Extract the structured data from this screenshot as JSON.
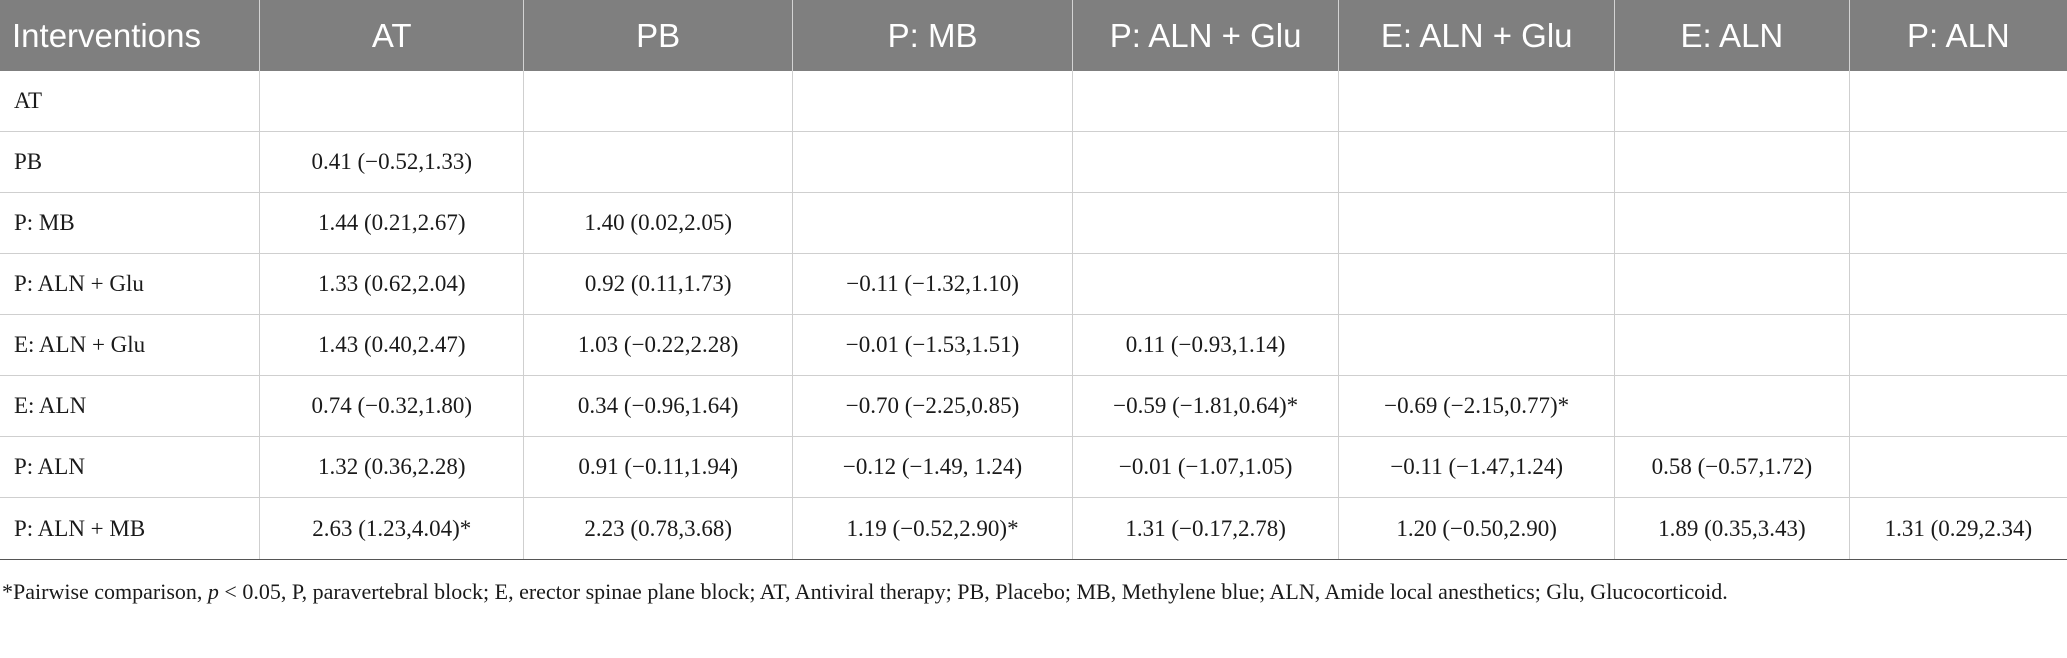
{
  "table": {
    "headers": [
      "Interventions",
      "AT",
      "PB",
      "P: MB",
      "P: ALN + Glu",
      "E: ALN + Glu",
      "E: ALN",
      "P: ALN"
    ],
    "rows": [
      [
        "AT",
        "",
        "",
        "",
        "",
        "",
        "",
        ""
      ],
      [
        "PB",
        "0.41 (−0.52,1.33)",
        "",
        "",
        "",
        "",
        "",
        ""
      ],
      [
        "P: MB",
        "1.44 (0.21,2.67)",
        "1.40 (0.02,2.05)",
        "",
        "",
        "",
        "",
        ""
      ],
      [
        "P: ALN + Glu",
        "1.33 (0.62,2.04)",
        "0.92 (0.11,1.73)",
        "−0.11 (−1.32,1.10)",
        "",
        "",
        "",
        ""
      ],
      [
        "E: ALN + Glu",
        "1.43 (0.40,2.47)",
        "1.03 (−0.22,2.28)",
        "−0.01 (−1.53,1.51)",
        "0.11 (−0.93,1.14)",
        "",
        "",
        ""
      ],
      [
        "E: ALN",
        "0.74 (−0.32,1.80)",
        "0.34 (−0.96,1.64)",
        "−0.70 (−2.25,0.85)",
        "−0.59 (−1.81,0.64)*",
        "−0.69 (−2.15,0.77)*",
        "",
        ""
      ],
      [
        "P: ALN",
        "1.32 (0.36,2.28)",
        "0.91 (−0.11,1.94)",
        "−0.12 (−1.49, 1.24)",
        "−0.01 (−1.07,1.05)",
        "−0.11 (−1.47,1.24)",
        "0.58 (−0.57,1.72)",
        ""
      ],
      [
        "P: ALN + MB",
        "2.63 (1.23,4.04)*",
        "2.23 (0.78,3.68)",
        "1.19 (−0.52,2.90)*",
        "1.31 (−0.17,2.78)",
        "1.20 (−0.50,2.90)",
        "1.89 (0.35,3.43)",
        "1.31 (0.29,2.34)"
      ]
    ]
  },
  "footnote": {
    "prefix": "*Pairwise comparison, ",
    "p_symbol": "p",
    "suffix": " < 0.05, P, paravertebral block; E, erector spinae plane block; AT, Antiviral therapy; PB, Placebo; MB, Methylene blue; ALN, Amide local anesthetics; Glu, Glucocorticoid."
  }
}
